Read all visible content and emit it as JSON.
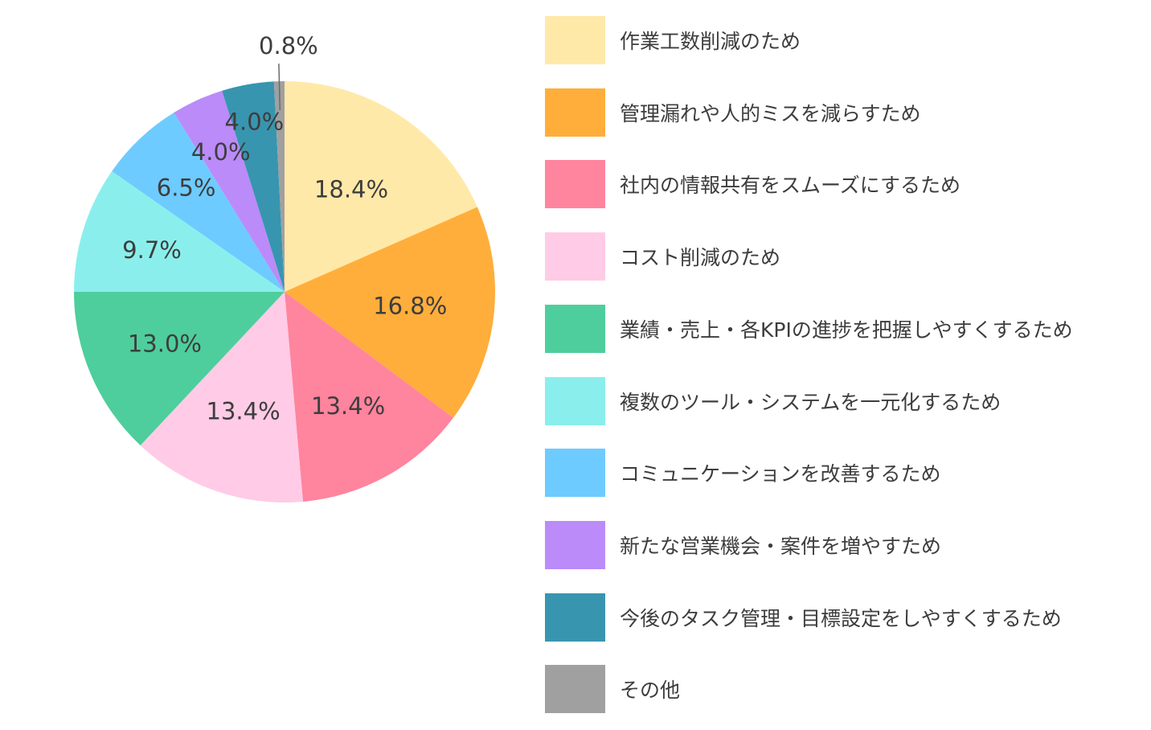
{
  "chart_data": {
    "type": "pie",
    "start": "top",
    "direction": "clockwise",
    "slices": [
      {
        "name": "作業工数削減のため",
        "value": 18.4,
        "label": "18.4%",
        "color": "#FFE9A8"
      },
      {
        "name": "管理漏れや人的ミスを減らすため",
        "value": 16.8,
        "label": "16.8%",
        "color": "#FFAE3B"
      },
      {
        "name": "社内の情報共有をスムーズにするため",
        "value": 13.4,
        "label": "13.4%",
        "color": "#FF849E"
      },
      {
        "name": "コスト削減のため",
        "value": 13.4,
        "label": "13.4%",
        "color": "#FFCBE6"
      },
      {
        "name": "業績・売上・各KPIの進捗を把握しやすくするため",
        "value": 13.0,
        "label": "13.0%",
        "color": "#4ECE9C"
      },
      {
        "name": "複数のツール・システムを一元化するため",
        "value": 9.7,
        "label": "9.7%",
        "color": "#8AEFEC"
      },
      {
        "name": "コミュニケーションを改善するため",
        "value": 6.5,
        "label": "6.5%",
        "color": "#6ECBFF"
      },
      {
        "name": "新たな営業機会・案件を増やすため",
        "value": 4.0,
        "label": "4.0%",
        "color": "#BA8BF9"
      },
      {
        "name": "今後のタスク管理・目標設定をしやすくするため",
        "value": 4.0,
        "label": "4.0%",
        "color": "#3895AF"
      },
      {
        "name": "その他",
        "value": 0.8,
        "label": "0.8%",
        "color": "#A0A0A0"
      }
    ],
    "legend_position": "right"
  }
}
